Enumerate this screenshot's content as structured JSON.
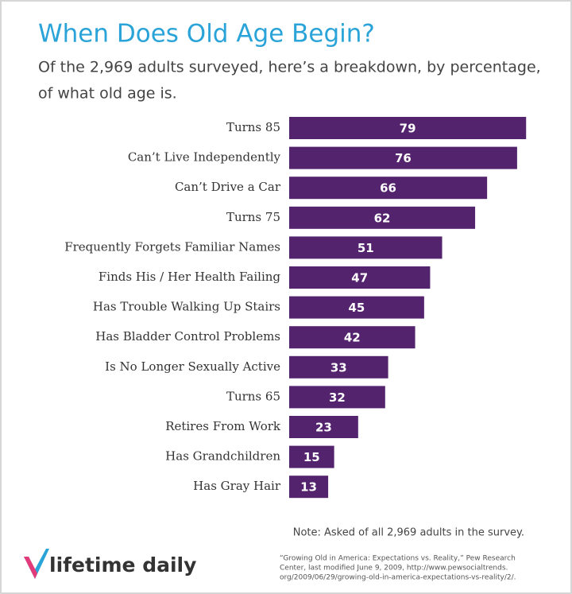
{
  "chart_data": {
    "type": "bar",
    "orientation": "horizontal",
    "title": "When Does Old Age Begin?",
    "subtitle": [
      "Of the 2,969 adults surveyed, here’s a breakdown, by percentage,",
      "of what old age is."
    ],
    "categories": [
      "Turns 85",
      "Can’t Live Independently",
      "Can’t Drive a Car",
      "Turns 75",
      "Frequently Forgets Familiar Names",
      "Finds His / Her Health Failing",
      "Has Trouble Walking Up Stairs",
      "Has Bladder Control Problems",
      "Is No Longer Sexually Active",
      "Turns 65",
      "Retires From Work",
      "Has Grandchildren",
      "Has Gray Hair"
    ],
    "values": [
      79,
      76,
      66,
      62,
      51,
      47,
      45,
      42,
      33,
      32,
      23,
      15,
      13
    ],
    "color": "#54236e",
    "note": "Note: Asked of all 2,969 adults in the survey.",
    "source": [
      "“Growing Old in America: Expectations vs. Reality,” Pew Research",
      "Center, last modified June 9, 2009, http://www.pewsocialtrends.",
      "org/2009/06/29/growing-old-in-america-expectations-vs-reality/2/."
    ],
    "logo": "lifetime daily"
  }
}
